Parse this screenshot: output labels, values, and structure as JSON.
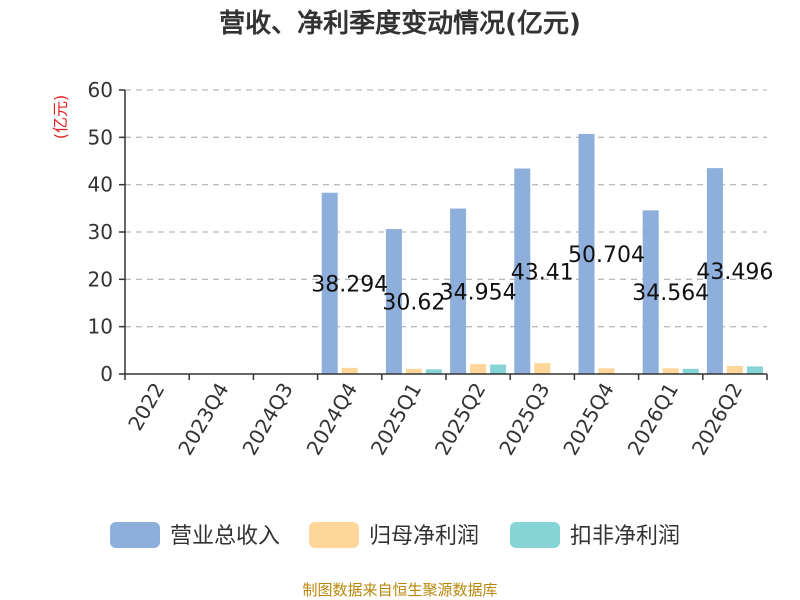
{
  "chart_data": {
    "type": "bar",
    "title": "营收、净利季度变动情况(亿元)",
    "ylabel": "(亿元)",
    "xlabel": "",
    "ylim": [
      0,
      60
    ],
    "yticks": [
      0,
      10,
      20,
      30,
      40,
      50,
      60
    ],
    "categories": [
      "2022",
      "2023Q4",
      "2024Q3",
      "2024Q4",
      "2025Q1",
      "2025Q2",
      "2025Q3",
      "2025Q4",
      "2026Q1",
      "2026Q2"
    ],
    "series": [
      {
        "name": "营业总收入",
        "color": "#8eaedb",
        "values": [
          null,
          null,
          null,
          38.294,
          30.62,
          34.954,
          43.41,
          50.704,
          34.564,
          43.496
        ],
        "labels": [
          "",
          "",
          "",
          "38.294",
          "30.62",
          "34.954",
          "43.41",
          "50.704",
          "34.564",
          "43.496"
        ]
      },
      {
        "name": "归母净利润",
        "color": "#ffd699",
        "values": [
          null,
          null,
          null,
          1.3,
          1.1,
          2.1,
          2.3,
          1.2,
          1.2,
          1.7
        ]
      },
      {
        "name": "扣非净利润",
        "color": "#86d4d6",
        "values": [
          null,
          null,
          null,
          null,
          1.0,
          2.0,
          null,
          null,
          1.1,
          1.6
        ]
      }
    ],
    "grid": true,
    "legend": "bottom"
  },
  "footer": {
    "source": "制图数据来自恒生聚源数据库"
  }
}
